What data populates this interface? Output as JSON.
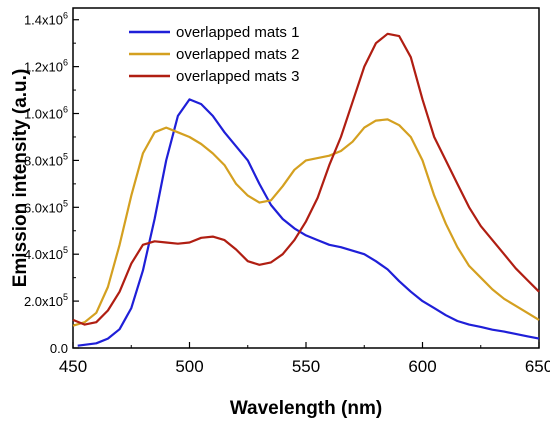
{
  "chart_data": {
    "type": "line",
    "xlabel": "Wavelength (nm)",
    "ylabel": "Emission intensity (a.u.)",
    "xlim": [
      450,
      650
    ],
    "ylim": [
      0,
      1450000
    ],
    "x_ticks": [
      450,
      500,
      550,
      600,
      650
    ],
    "x_tick_labels": [
      "450",
      "500",
      "550",
      "600",
      "650"
    ],
    "y_ticks": [
      0,
      200000,
      400000,
      600000,
      800000,
      1000000,
      1200000,
      1400000
    ],
    "y_tick_labels": [
      {
        "mant": "0.0",
        "exp": ""
      },
      {
        "mant": "2.0x10",
        "exp": "5"
      },
      {
        "mant": "4.0x10",
        "exp": "5"
      },
      {
        "mant": "6.0x10",
        "exp": "5"
      },
      {
        "mant": "8.0x10",
        "exp": "5"
      },
      {
        "mant": "1.0x10",
        "exp": "6"
      },
      {
        "mant": "1.2x10",
        "exp": "6"
      },
      {
        "mant": "1.4x10",
        "exp": "6"
      }
    ],
    "legend_position": "top-left",
    "grid": false,
    "series": [
      {
        "name": "overlapped mats 1",
        "color": "#1f1fd8",
        "points": [
          [
            452,
            10000
          ],
          [
            460,
            20000
          ],
          [
            465,
            40000
          ],
          [
            470,
            80000
          ],
          [
            475,
            170000
          ],
          [
            480,
            330000
          ],
          [
            485,
            550000
          ],
          [
            490,
            800000
          ],
          [
            495,
            990000
          ],
          [
            500,
            1060000
          ],
          [
            505,
            1040000
          ],
          [
            510,
            990000
          ],
          [
            515,
            920000
          ],
          [
            520,
            860000
          ],
          [
            525,
            800000
          ],
          [
            530,
            700000
          ],
          [
            535,
            610000
          ],
          [
            540,
            550000
          ],
          [
            545,
            510000
          ],
          [
            550,
            480000
          ],
          [
            555,
            460000
          ],
          [
            560,
            440000
          ],
          [
            565,
            430000
          ],
          [
            570,
            415000
          ],
          [
            575,
            400000
          ],
          [
            580,
            370000
          ],
          [
            585,
            335000
          ],
          [
            590,
            285000
          ],
          [
            595,
            240000
          ],
          [
            600,
            200000
          ],
          [
            605,
            170000
          ],
          [
            610,
            140000
          ],
          [
            615,
            115000
          ],
          [
            620,
            100000
          ],
          [
            625,
            90000
          ],
          [
            630,
            78000
          ],
          [
            635,
            70000
          ],
          [
            640,
            60000
          ],
          [
            645,
            50000
          ],
          [
            650,
            40000
          ]
        ]
      },
      {
        "name": "overlapped mats 2",
        "color": "#d4a020",
        "points": [
          [
            450,
            95000
          ],
          [
            455,
            110000
          ],
          [
            460,
            150000
          ],
          [
            465,
            260000
          ],
          [
            470,
            440000
          ],
          [
            475,
            650000
          ],
          [
            480,
            830000
          ],
          [
            485,
            920000
          ],
          [
            490,
            940000
          ],
          [
            495,
            920000
          ],
          [
            500,
            900000
          ],
          [
            505,
            870000
          ],
          [
            510,
            830000
          ],
          [
            515,
            780000
          ],
          [
            520,
            700000
          ],
          [
            525,
            650000
          ],
          [
            530,
            620000
          ],
          [
            535,
            630000
          ],
          [
            540,
            690000
          ],
          [
            545,
            760000
          ],
          [
            550,
            800000
          ],
          [
            555,
            810000
          ],
          [
            560,
            820000
          ],
          [
            565,
            840000
          ],
          [
            570,
            880000
          ],
          [
            575,
            940000
          ],
          [
            580,
            970000
          ],
          [
            585,
            975000
          ],
          [
            590,
            950000
          ],
          [
            595,
            900000
          ],
          [
            600,
            800000
          ],
          [
            605,
            650000
          ],
          [
            610,
            530000
          ],
          [
            615,
            430000
          ],
          [
            620,
            350000
          ],
          [
            625,
            300000
          ],
          [
            630,
            250000
          ],
          [
            635,
            210000
          ],
          [
            640,
            180000
          ],
          [
            645,
            150000
          ],
          [
            650,
            120000
          ]
        ]
      },
      {
        "name": "overlapped mats 3",
        "color": "#b01e12",
        "points": [
          [
            450,
            120000
          ],
          [
            455,
            100000
          ],
          [
            460,
            110000
          ],
          [
            465,
            160000
          ],
          [
            470,
            240000
          ],
          [
            475,
            360000
          ],
          [
            480,
            440000
          ],
          [
            485,
            455000
          ],
          [
            490,
            450000
          ],
          [
            495,
            445000
          ],
          [
            500,
            450000
          ],
          [
            505,
            470000
          ],
          [
            510,
            475000
          ],
          [
            515,
            460000
          ],
          [
            520,
            420000
          ],
          [
            525,
            370000
          ],
          [
            530,
            355000
          ],
          [
            535,
            365000
          ],
          [
            540,
            400000
          ],
          [
            545,
            460000
          ],
          [
            550,
            540000
          ],
          [
            555,
            640000
          ],
          [
            560,
            780000
          ],
          [
            565,
            900000
          ],
          [
            570,
            1050000
          ],
          [
            575,
            1200000
          ],
          [
            580,
            1300000
          ],
          [
            585,
            1340000
          ],
          [
            590,
            1330000
          ],
          [
            595,
            1240000
          ],
          [
            600,
            1060000
          ],
          [
            605,
            900000
          ],
          [
            610,
            800000
          ],
          [
            615,
            700000
          ],
          [
            620,
            600000
          ],
          [
            625,
            520000
          ],
          [
            630,
            460000
          ],
          [
            635,
            400000
          ],
          [
            640,
            340000
          ],
          [
            645,
            290000
          ],
          [
            650,
            240000
          ]
        ]
      }
    ]
  }
}
